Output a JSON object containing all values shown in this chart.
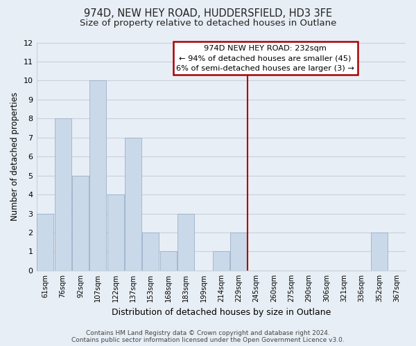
{
  "title1": "974D, NEW HEY ROAD, HUDDERSFIELD, HD3 3FE",
  "title2": "Size of property relative to detached houses in Outlane",
  "xlabel": "Distribution of detached houses by size in Outlane",
  "ylabel": "Number of detached properties",
  "bar_labels": [
    "61sqm",
    "76sqm",
    "92sqm",
    "107sqm",
    "122sqm",
    "137sqm",
    "153sqm",
    "168sqm",
    "183sqm",
    "199sqm",
    "214sqm",
    "229sqm",
    "245sqm",
    "260sqm",
    "275sqm",
    "290sqm",
    "306sqm",
    "321sqm",
    "336sqm",
    "352sqm",
    "367sqm"
  ],
  "bar_values": [
    3,
    8,
    5,
    10,
    4,
    7,
    2,
    1,
    3,
    0,
    1,
    2,
    0,
    0,
    0,
    0,
    0,
    0,
    0,
    2,
    0
  ],
  "bar_color": "#c9d9ea",
  "bar_edgecolor": "#9ab0c8",
  "ylim": [
    0,
    12
  ],
  "yticks": [
    0,
    1,
    2,
    3,
    4,
    5,
    6,
    7,
    8,
    9,
    10,
    11,
    12
  ],
  "red_line_index": 11,
  "annotation_title": "974D NEW HEY ROAD: 232sqm",
  "annotation_line1": "← 94% of detached houses are smaller (45)",
  "annotation_line2": "6% of semi-detached houses are larger (3) →",
  "annotation_box_facecolor": "#ffffff",
  "annotation_box_edgecolor": "#aa0000",
  "red_line_color": "#aa0000",
  "footer1": "Contains HM Land Registry data © Crown copyright and database right 2024.",
  "footer2": "Contains public sector information licensed under the Open Government Licence v3.0.",
  "background_color": "#e8eef5",
  "grid_color": "#c8d0da",
  "title_fontsize": 10.5,
  "subtitle_fontsize": 9.5
}
